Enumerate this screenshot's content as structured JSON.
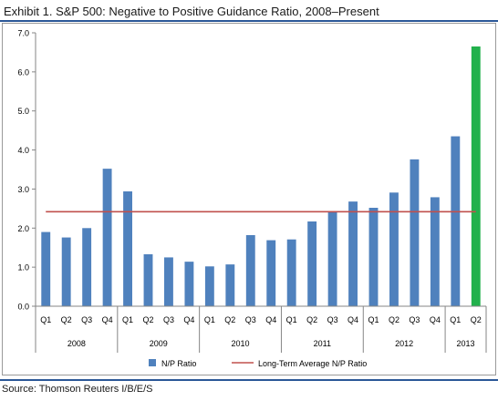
{
  "title": "Exhibit 1. S&P 500: Negative to Positive Guidance Ratio, 2008–Present",
  "source": "Source: Thomson Reuters I/B/E/S",
  "chart_data": {
    "type": "bar",
    "title": "",
    "xlabel": "",
    "ylabel": "",
    "ylim": [
      0,
      7
    ],
    "yticks": [
      "0.0",
      "1.0",
      "2.0",
      "3.0",
      "4.0",
      "5.0",
      "6.0",
      "7.0"
    ],
    "grid": false,
    "legend_position": "bottom",
    "categories": [
      "Q1",
      "Q2",
      "Q3",
      "Q4",
      "Q1",
      "Q2",
      "Q3",
      "Q4",
      "Q1",
      "Q2",
      "Q3",
      "Q4",
      "Q1",
      "Q2",
      "Q3",
      "Q4",
      "Q1",
      "Q2",
      "Q3",
      "Q4",
      "Q1",
      "Q2"
    ],
    "years": [
      {
        "label": "2008",
        "count": 4
      },
      {
        "label": "2009",
        "count": 4
      },
      {
        "label": "2010",
        "count": 4
      },
      {
        "label": "2011",
        "count": 4
      },
      {
        "label": "2012",
        "count": 4
      },
      {
        "label": "2013",
        "count": 2
      }
    ],
    "series": [
      {
        "name": "N/P Ratio",
        "color": "#4f81bd",
        "highlight_color": "#22b14c",
        "highlight_index": 21,
        "values": [
          1.9,
          1.76,
          2.0,
          3.52,
          2.94,
          1.33,
          1.25,
          1.14,
          1.02,
          1.07,
          1.82,
          1.69,
          1.71,
          2.17,
          2.42,
          2.68,
          2.52,
          2.91,
          3.76,
          2.79,
          4.35,
          6.65
        ]
      },
      {
        "name": "Long-Term Average N/P Ratio",
        "color": "#c0504d",
        "type": "line",
        "value": 2.42
      }
    ]
  }
}
